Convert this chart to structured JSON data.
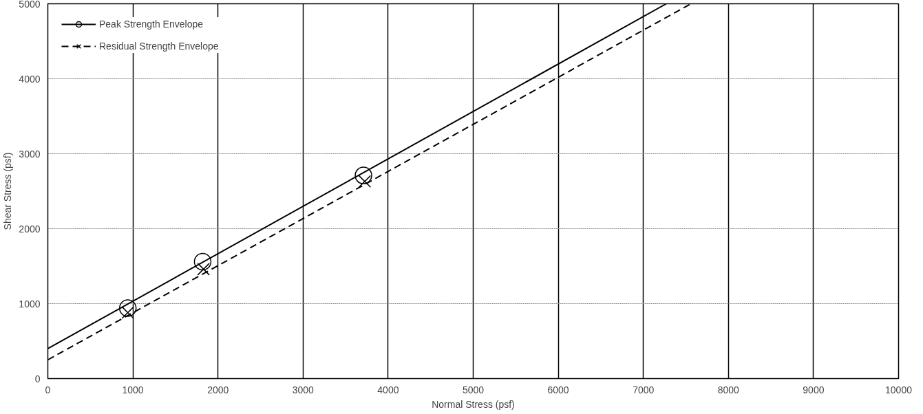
{
  "chart_data": {
    "type": "line",
    "xlabel": "Normal Stress (psf)",
    "ylabel": "Shear Stress (psf)",
    "xlim": [
      0,
      10000
    ],
    "ylim": [
      0,
      5000
    ],
    "xticks": [
      0,
      1000,
      2000,
      3000,
      4000,
      5000,
      6000,
      7000,
      8000,
      9000,
      10000
    ],
    "yticks": [
      0,
      1000,
      2000,
      3000,
      4000,
      5000
    ],
    "grid": true,
    "legend": "top left",
    "series": [
      {
        "name": "Peak Strength Envelope",
        "line_style": "solid",
        "color": "#000000",
        "x": [
          0,
          7270
        ],
        "values": [
          400,
          5000
        ]
      },
      {
        "type": "scatter",
        "marker": "circle",
        "color": "#000000",
        "x": [
          940,
          1820,
          3710
        ],
        "values": [
          940,
          1560,
          2710
        ]
      },
      {
        "name": "Residual Strength Envelope",
        "line_style": "dashed",
        "color": "#000000",
        "x": [
          0,
          7560
        ],
        "values": [
          250,
          5000
        ]
      },
      {
        "type": "scatter",
        "marker": "cross",
        "color": "#000000",
        "x": [
          940,
          1830,
          3725
        ],
        "values": [
          880,
          1460,
          2630
        ]
      }
    ]
  }
}
